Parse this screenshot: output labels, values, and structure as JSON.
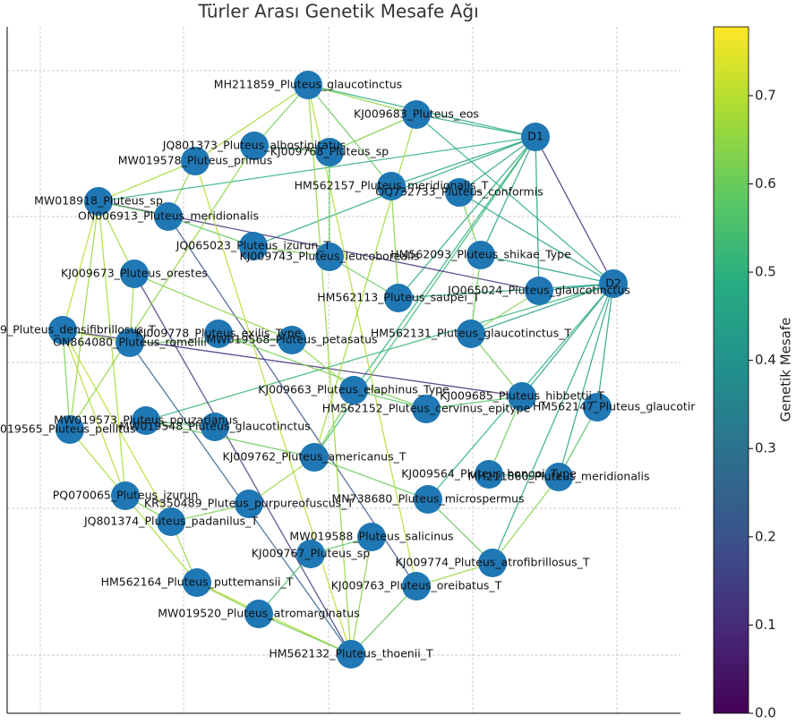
{
  "title": "Türler Arası Genetik Mesafe Ağı",
  "nodes": [
    {
      "label": "MH211859_Pluteus_glaucotinctus"
    },
    {
      "label": "KJ009683_Pluteus_eos"
    },
    {
      "label": "D1"
    },
    {
      "label": "JQ801373_Pluteus_albostipitatus"
    },
    {
      "label": "KJ009768_Pluteus_sp"
    },
    {
      "label": "MW019578_Pluteus_primus"
    },
    {
      "label": "HM562157_Pluteus_meridionalis_T"
    },
    {
      "label": "OQ732733_Pluteus_conformis"
    },
    {
      "label": "MW018918_Pluteus_sp"
    },
    {
      "label": "ON006913_Pluteus_meridionalis"
    },
    {
      "label": "JQ065023_Pluteus_izurun_T"
    },
    {
      "label": "KJ009743_Pluteus_leucoborealis"
    },
    {
      "label": "HM562093_Pluteus_shikae_Type"
    },
    {
      "label": "D2"
    },
    {
      "label": "KJ009673_Pluteus_orestes"
    },
    {
      "label": "JQ065024_Pluteus_glaucotinctus"
    },
    {
      "label": "HM562113_Pluteus_saupei_T"
    },
    {
      "label": "9_Pluteus_densifibrillosus_T"
    },
    {
      "label": "KJ009778_Pluteus_exilis_Type"
    },
    {
      "label": "ON864080_Pluteus_romellii"
    },
    {
      "label": "MW019568_Pluteus_petasatus"
    },
    {
      "label": "HM562131_Pluteus_glaucotinctus_T"
    },
    {
      "label": "KJ009663_Pluteus_elaphinus_Type"
    },
    {
      "label": "HM562152_Pluteus_cervinus_epitype"
    },
    {
      "label": "KJ009685_Pluteus_hibbettii_T"
    },
    {
      "label": "HM562147_Pluteus_glaucotir"
    },
    {
      "label": "MW019573_Pluteus_pouzarianus"
    },
    {
      "label": "019565_Pluteus_pellitus"
    },
    {
      "label": "MW019548_Pluteus_glaucotinctus"
    },
    {
      "label": "KJ009762_Pluteus_americanus_T"
    },
    {
      "label": "KJ009564_Pluteus_hongoi_Type"
    },
    {
      "label": "MH211860_Pluteus_meridionalis"
    },
    {
      "label": "PQ070065_Pluteus_izurun"
    },
    {
      "label": "KR350489_Pluteus_purpureofuscus_T"
    },
    {
      "label": "MN738680_Pluteus_microspermus"
    },
    {
      "label": "JQ801374_Pluteus_padanilus_T"
    },
    {
      "label": "MW019588_Pluteus_salicinus"
    },
    {
      "label": "KJ009767_Pluteus_sp"
    },
    {
      "label": "KJ009774_Pluteus_atrofibrillosus_T"
    },
    {
      "label": "HM562164_Pluteus_puttemansii_T"
    },
    {
      "label": "KJ009763_Pluteus_oreibatus_T"
    },
    {
      "label": "MW019520_Pluteus_atromarginatus"
    },
    {
      "label": "HM562132_Pluteus_thoenii_T"
    }
  ],
  "edges": [
    [
      2,
      0,
      0.5
    ],
    [
      2,
      1,
      0.48
    ],
    [
      2,
      6,
      0.47
    ],
    [
      2,
      7,
      0.46
    ],
    [
      2,
      12,
      0.45
    ],
    [
      2,
      15,
      0.45
    ],
    [
      2,
      16,
      0.47
    ],
    [
      2,
      10,
      0.48
    ],
    [
      2,
      8,
      0.5
    ],
    [
      2,
      13,
      0.1
    ],
    [
      2,
      22,
      0.5
    ],
    [
      2,
      29,
      0.52
    ],
    [
      13,
      15,
      0.42
    ],
    [
      13,
      12,
      0.44
    ],
    [
      13,
      21,
      0.45
    ],
    [
      13,
      24,
      0.43
    ],
    [
      13,
      25,
      0.45
    ],
    [
      13,
      31,
      0.46
    ],
    [
      13,
      38,
      0.48
    ],
    [
      13,
      7,
      0.46
    ],
    [
      13,
      16,
      0.47
    ],
    [
      13,
      1,
      0.5
    ],
    [
      13,
      34,
      0.5
    ],
    [
      13,
      26,
      0.52
    ],
    [
      8,
      15,
      0.12
    ],
    [
      14,
      42,
      0.15
    ],
    [
      17,
      24,
      0.1
    ],
    [
      9,
      40,
      0.2
    ],
    [
      19,
      42,
      0.25
    ],
    [
      0,
      1,
      0.65
    ],
    [
      0,
      3,
      0.62
    ],
    [
      0,
      5,
      0.68
    ],
    [
      0,
      6,
      0.6
    ],
    [
      0,
      42,
      0.66
    ],
    [
      1,
      4,
      0.63
    ],
    [
      3,
      4,
      0.55
    ],
    [
      5,
      8,
      0.68
    ],
    [
      5,
      9,
      0.64
    ],
    [
      8,
      9,
      0.6
    ],
    [
      8,
      14,
      0.67
    ],
    [
      8,
      17,
      0.7
    ],
    [
      8,
      27,
      0.66
    ],
    [
      8,
      32,
      0.68
    ],
    [
      9,
      10,
      0.58
    ],
    [
      10,
      11,
      0.62
    ],
    [
      11,
      16,
      0.6
    ],
    [
      14,
      19,
      0.66
    ],
    [
      14,
      20,
      0.64
    ],
    [
      17,
      19,
      0.67
    ],
    [
      17,
      27,
      0.62
    ],
    [
      17,
      32,
      0.69
    ],
    [
      17,
      35,
      0.7
    ],
    [
      19,
      20,
      0.6
    ],
    [
      20,
      22,
      0.65
    ],
    [
      22,
      23,
      0.58
    ],
    [
      22,
      29,
      0.62
    ],
    [
      23,
      24,
      0.57
    ],
    [
      24,
      30,
      0.6
    ],
    [
      26,
      28,
      0.55
    ],
    [
      26,
      29,
      0.6
    ],
    [
      27,
      39,
      0.68
    ],
    [
      29,
      33,
      0.66
    ],
    [
      29,
      34,
      0.6
    ],
    [
      30,
      31,
      0.52
    ],
    [
      32,
      35,
      0.63
    ],
    [
      33,
      35,
      0.62
    ],
    [
      34,
      38,
      0.6
    ],
    [
      36,
      37,
      0.58
    ],
    [
      36,
      42,
      0.64
    ],
    [
      37,
      41,
      0.55
    ],
    [
      38,
      40,
      0.66
    ],
    [
      39,
      41,
      0.63
    ],
    [
      39,
      42,
      0.7
    ],
    [
      40,
      42,
      0.6
    ],
    [
      41,
      42,
      0.6
    ],
    [
      6,
      16,
      0.64
    ],
    [
      7,
      12,
      0.62
    ],
    [
      12,
      21,
      0.6
    ],
    [
      15,
      21,
      0.63
    ],
    [
      21,
      24,
      0.61
    ],
    [
      25,
      31,
      0.57
    ],
    [
      4,
      11,
      0.6
    ],
    [
      18,
      23,
      0.62
    ],
    [
      35,
      39,
      0.66
    ],
    [
      3,
      27,
      0.65
    ],
    [
      1,
      29,
      0.67
    ],
    [
      0,
      40,
      0.69
    ],
    [
      5,
      42,
      0.7
    ],
    [
      31,
      38,
      0.64
    ]
  ],
  "colorbar": {
    "label": "Genetik Mesafe",
    "lim": [
      0,
      0.778
    ],
    "ticks": [
      {
        "value": 0,
        "label": "0.0"
      },
      {
        "value": 0.1,
        "label": "0.1"
      },
      {
        "value": 0.2,
        "label": "0.2"
      },
      {
        "value": 0.3,
        "label": "0.3"
      },
      {
        "value": 0.4,
        "label": "0.4"
      },
      {
        "value": 0.5,
        "label": "0.5"
      },
      {
        "value": 0.6,
        "label": "0.6"
      },
      {
        "value": 0.7,
        "label": "0.7"
      }
    ]
  }
}
